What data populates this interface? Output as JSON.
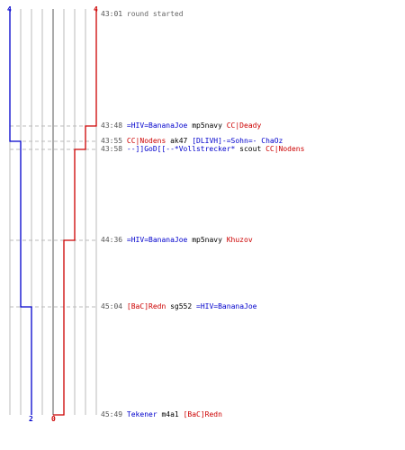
{
  "colors": {
    "blue": "#0000cc",
    "red": "#cc0000",
    "grid": "#bbbbbb",
    "dash": "#bbbbbb",
    "center": "#555555",
    "weapon": "#000000",
    "time": "#555555"
  },
  "score": {
    "blue_start": "4",
    "red_start": "4",
    "blue_end": "2",
    "red_end": "0"
  },
  "events": [
    {
      "time": "43:01",
      "note": "round started"
    },
    {
      "time": "43:48",
      "killer": "=HIV=BananaJoe",
      "killer_team": "blue",
      "weapon": "mp5navy",
      "victim": "CC|Deady",
      "victim_team": "red",
      "red_after": 3
    },
    {
      "time": "43:55",
      "killer": "CC|Nodens",
      "killer_team": "red",
      "weapon": "ak47",
      "victim": "[DLIVH]-=Sohn=- ChaOz",
      "victim_team": "blue",
      "blue_after": 3
    },
    {
      "time": "43:58",
      "killer": "--]]GoD[[--*Vollstrecker*",
      "killer_team": "blue",
      "weapon": "scout",
      "victim": "CC|Nodens",
      "victim_team": "red",
      "red_after": 2
    },
    {
      "time": "44:36",
      "killer": "=HIV=BananaJoe",
      "killer_team": "blue",
      "weapon": "mp5navy",
      "victim": "Khuzov",
      "victim_team": "red",
      "red_after": 1
    },
    {
      "time": "45:04",
      "killer": "[BaC]Redn",
      "killer_team": "red",
      "weapon": "sg552",
      "victim": "=HIV=BananaJoe",
      "victim_team": "blue",
      "blue_after": 2
    },
    {
      "time": "45:49",
      "killer": "Tekener",
      "killer_team": "blue",
      "weapon": "m4a1",
      "victim": "[BaC]Redn",
      "victim_team": "red",
      "red_after": 0
    }
  ],
  "chart_data": {
    "type": "line",
    "x": [
      "43:01",
      "43:48",
      "43:55",
      "43:58",
      "44:36",
      "45:04",
      "45:49"
    ],
    "series": [
      {
        "values": [
          4,
          4,
          3,
          3,
          3,
          2,
          2
        ]
      },
      {
        "values": [
          4,
          3,
          3,
          2,
          1,
          1,
          0
        ]
      }
    ],
    "ylim": [
      0,
      4
    ]
  }
}
